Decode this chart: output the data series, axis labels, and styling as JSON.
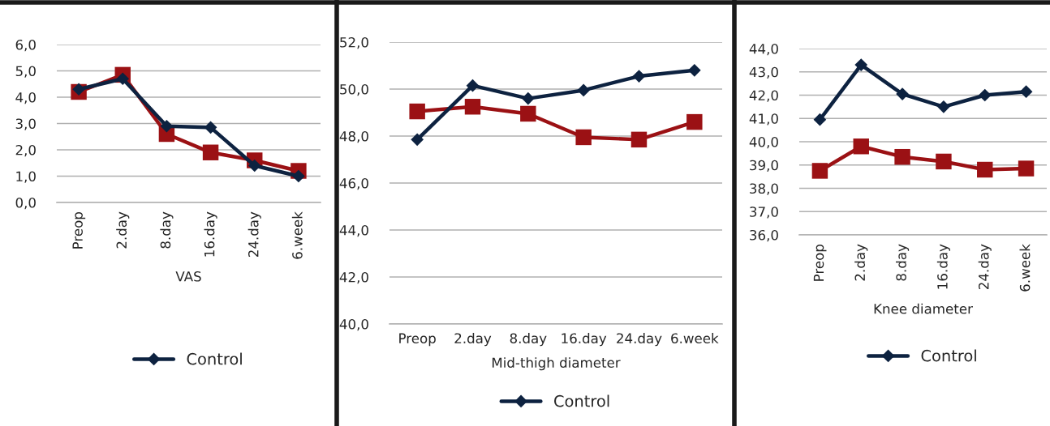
{
  "chart_data": [
    {
      "type": "line",
      "xlabel": "VAS",
      "categories": [
        "Preop",
        "2.day",
        "8.day",
        "16.day",
        "24.day",
        "6.week"
      ],
      "series": [
        {
          "name": "Control",
          "color": "#0d2240",
          "values": [
            4.3,
            4.7,
            2.9,
            2.85,
            1.4,
            1.0
          ],
          "marker": "diamond"
        },
        {
          "color": "#9b1114",
          "values": [
            4.2,
            4.85,
            2.6,
            1.9,
            1.6,
            1.2
          ],
          "marker": "square"
        }
      ],
      "ylim": [
        0,
        6
      ],
      "yticks": [
        {
          "value": 0,
          "label": "0,0"
        },
        {
          "value": 1,
          "label": "1,0"
        },
        {
          "value": 2,
          "label": "2,0"
        },
        {
          "value": 3,
          "label": "3,0"
        },
        {
          "value": 4,
          "label": "4,0"
        },
        {
          "value": 5,
          "label": "5,0"
        },
        {
          "value": 6,
          "label": "6,0"
        }
      ],
      "grid": "y",
      "legend": "bottom"
    },
    {
      "type": "line",
      "xlabel": "Mid-thigh diameter",
      "categories": [
        "Preop",
        "2.day",
        "8.day",
        "16.day",
        "24.day",
        "6.week"
      ],
      "series": [
        {
          "name": "Control",
          "color": "#0d2240",
          "values": [
            47.85,
            50.15,
            49.6,
            49.95,
            50.55,
            50.8
          ],
          "marker": "diamond"
        },
        {
          "color": "#9b1114",
          "values": [
            49.05,
            49.25,
            48.95,
            47.95,
            47.85,
            48.6
          ],
          "marker": "square"
        }
      ],
      "ylim": [
        40,
        52
      ],
      "yticks": [
        {
          "value": 40,
          "label": "40,0"
        },
        {
          "value": 42,
          "label": "42,0"
        },
        {
          "value": 44,
          "label": "44,0"
        },
        {
          "value": 46,
          "label": "46,0"
        },
        {
          "value": 48,
          "label": "48,0"
        },
        {
          "value": 50,
          "label": "50,0"
        },
        {
          "value": 52,
          "label": "52,0"
        }
      ],
      "grid": "y",
      "legend": "bottom"
    },
    {
      "type": "line",
      "xlabel": "Knee diameter",
      "categories": [
        "Preop",
        "2.day",
        "8.day",
        "16.day",
        "24.day",
        "6.week"
      ],
      "series": [
        {
          "name": "Control",
          "color": "#0d2240",
          "values": [
            40.95,
            43.3,
            42.05,
            41.5,
            42.0,
            42.15
          ],
          "marker": "diamond"
        },
        {
          "color": "#9b1114",
          "values": [
            38.75,
            39.8,
            39.35,
            39.15,
            38.8,
            38.85
          ],
          "marker": "square"
        }
      ],
      "ylim": [
        36,
        44
      ],
      "yticks": [
        {
          "value": 36,
          "label": "36,0"
        },
        {
          "value": 37,
          "label": "37,0"
        },
        {
          "value": 38,
          "label": "38,0"
        },
        {
          "value": 39,
          "label": "39,0"
        },
        {
          "value": 40,
          "label": "40,0"
        },
        {
          "value": 41,
          "label": "41,0"
        },
        {
          "value": 42,
          "label": "42,0"
        },
        {
          "value": 43,
          "label": "43,0"
        },
        {
          "value": 44,
          "label": "44,0"
        }
      ],
      "grid": "y",
      "legend": "bottom"
    }
  ]
}
